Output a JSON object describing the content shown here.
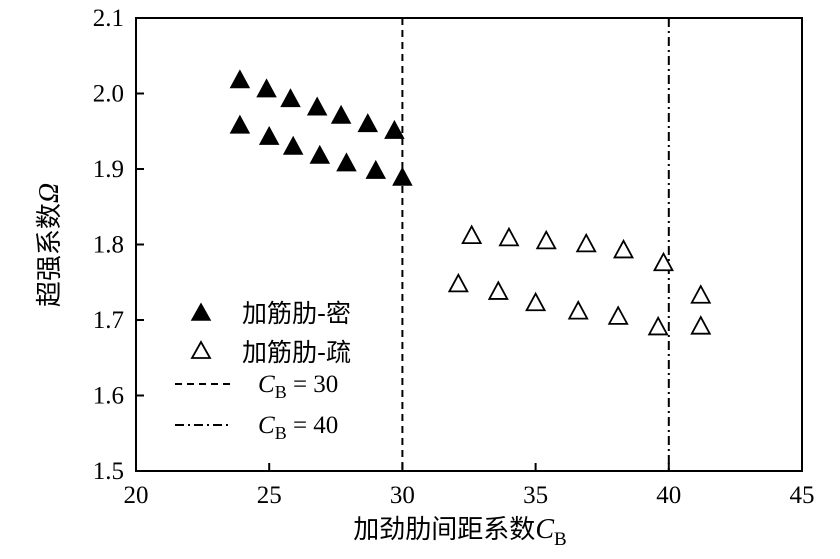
{
  "chart_data": {
    "type": "scatter",
    "xlabel": "加劲肋间距系数",
    "xlabel_symbol": "C",
    "xlabel_subscript": "B",
    "ylabel": "超强系数",
    "ylabel_symbol": "Ω",
    "xlim": [
      20,
      45
    ],
    "ylim": [
      1.5,
      2.1
    ],
    "xticks": [
      "20",
      "25",
      "30",
      "35",
      "40",
      "45"
    ],
    "yticks": [
      "1.5",
      "1.6",
      "1.7",
      "1.8",
      "1.9",
      "2.0",
      "2.1"
    ],
    "series": [
      {
        "name": "加筋肋-密",
        "marker": "filled-triangle",
        "color": "#000000",
        "points": [
          [
            23.9,
            2.018
          ],
          [
            24.9,
            2.006
          ],
          [
            25.8,
            1.993
          ],
          [
            26.8,
            1.982
          ],
          [
            27.7,
            1.971
          ],
          [
            28.7,
            1.96
          ],
          [
            29.7,
            1.951
          ],
          [
            23.9,
            1.958
          ],
          [
            25.0,
            1.943
          ],
          [
            25.9,
            1.93
          ],
          [
            26.9,
            1.918
          ],
          [
            27.9,
            1.908
          ],
          [
            29.0,
            1.898
          ],
          [
            30.0,
            1.889
          ]
        ]
      },
      {
        "name": "加筋肋-疏",
        "marker": "open-triangle",
        "color": "#000000",
        "points": [
          [
            32.6,
            1.812
          ],
          [
            34.0,
            1.809
          ],
          [
            35.4,
            1.805
          ],
          [
            36.9,
            1.801
          ],
          [
            38.3,
            1.793
          ],
          [
            39.8,
            1.776
          ],
          [
            41.2,
            1.733
          ],
          [
            32.1,
            1.748
          ],
          [
            33.6,
            1.738
          ],
          [
            35.0,
            1.723
          ],
          [
            36.6,
            1.712
          ],
          [
            38.1,
            1.705
          ],
          [
            39.6,
            1.691
          ],
          [
            41.2,
            1.692
          ]
        ]
      }
    ],
    "reference_lines": [
      {
        "label_symbol": "C",
        "label_subscript": "B",
        "label_rest": " = 30",
        "x": 30,
        "style": "dashed"
      },
      {
        "label_symbol": "C",
        "label_subscript": "B",
        "label_rest": " = 40",
        "x": 40,
        "style": "dashdot"
      }
    ],
    "legend_position": "bottom-left",
    "grid": false
  }
}
